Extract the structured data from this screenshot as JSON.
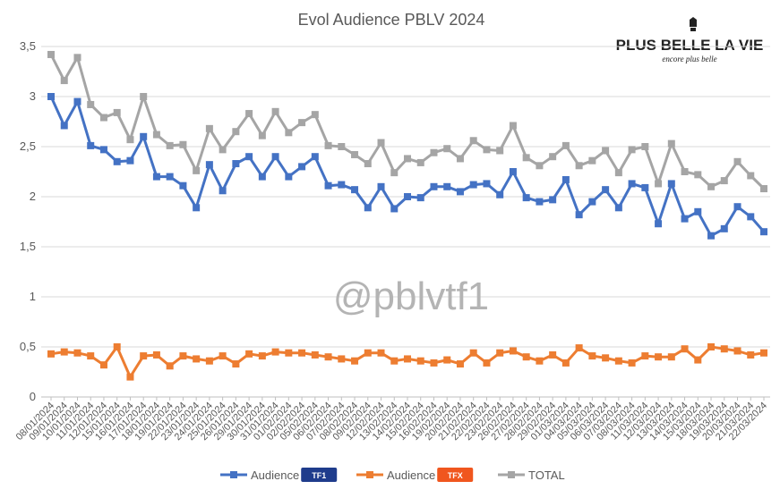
{
  "chart_data": {
    "type": "line",
    "title": "Evol Audience PBLV 2024",
    "ylim": [
      0,
      3.5
    ],
    "yticks": [
      "0",
      "0,5",
      "1",
      "1,5",
      "2",
      "2,5",
      "3",
      "3,5"
    ],
    "grid": true,
    "legend_position": "bottom",
    "x_tick_labels": [
      "08/01/2024",
      "09/01/2024",
      "10/01/2024",
      "11/01/2024",
      "12/01/2024",
      "15/01/2024",
      "16/01/2024",
      "17/01/2024",
      "18/01/2024",
      "19/01/2024",
      "22/01/2024",
      "23/01/2024",
      "24/01/2024",
      "25/01/2024",
      "26/01/2024",
      "29/01/2024",
      "30/01/2024",
      "31/01/2024",
      "01/02/2024",
      "02/02/2024",
      "05/02/2024",
      "06/02/2024",
      "07/02/2024",
      "08/02/2024",
      "09/02/2024",
      "12/02/2024",
      "13/02/2024",
      "14/02/2024",
      "15/02/2024",
      "16/02/2024",
      "19/02/2024",
      "20/02/2024",
      "21/02/2024",
      "22/02/2024",
      "23/02/2024",
      "26/02/2024",
      "27/02/2024",
      "28/02/2024",
      "29/02/2024",
      "01/03/2024",
      "04/03/2024",
      "05/03/2024",
      "06/03/2024",
      "07/03/2024",
      "08/03/2024",
      "11/03/2024",
      "12/03/2024",
      "13/03/2024",
      "14/03/2024",
      "15/03/2024",
      "18/03/2024",
      "19/03/2024",
      "20/03/2024",
      "21/03/2024",
      "22/03/2024"
    ],
    "series": [
      {
        "name": "Audience",
        "badge": "TF1",
        "color": "#4472C4",
        "values": [
          3.0,
          2.71,
          2.95,
          2.51,
          2.47,
          2.35,
          2.36,
          2.6,
          2.2,
          2.2,
          2.11,
          1.89,
          2.32,
          2.06,
          2.33,
          2.4,
          2.2,
          2.4,
          2.2,
          2.3,
          2.4,
          2.11,
          2.12,
          2.07,
          1.89,
          2.1,
          1.88,
          2.0,
          1.99,
          2.1,
          2.1,
          2.05,
          2.12,
          2.13,
          2.02,
          2.25,
          1.99,
          1.95,
          1.97,
          2.17,
          1.82,
          1.95,
          2.07,
          1.89,
          2.13,
          2.09,
          1.73,
          2.13,
          1.78,
          1.85,
          1.61,
          1.68,
          1.9,
          1.8,
          1.65
        ]
      },
      {
        "name": "Audience",
        "badge": "TFX",
        "color": "#ED7D31",
        "values": [
          0.43,
          0.45,
          0.44,
          0.41,
          0.32,
          0.5,
          0.2,
          0.41,
          0.42,
          0.31,
          0.41,
          0.38,
          0.36,
          0.41,
          0.33,
          0.43,
          0.41,
          0.45,
          0.44,
          0.44,
          0.42,
          0.4,
          0.38,
          0.36,
          0.44,
          0.44,
          0.36,
          0.38,
          0.36,
          0.34,
          0.37,
          0.33,
          0.44,
          0.34,
          0.44,
          0.46,
          0.4,
          0.36,
          0.42,
          0.34,
          0.49,
          0.41,
          0.39,
          0.36,
          0.34,
          0.41,
          0.4,
          0.4,
          0.48,
          0.37,
          0.5,
          0.48,
          0.46,
          0.42,
          0.44
        ]
      },
      {
        "name": "TOTAL",
        "color": "#A5A5A5",
        "values": [
          3.42,
          3.16,
          3.39,
          2.92,
          2.79,
          2.84,
          2.57,
          3.0,
          2.62,
          2.51,
          2.52,
          2.26,
          2.68,
          2.47,
          2.65,
          2.83,
          2.61,
          2.85,
          2.64,
          2.74,
          2.82,
          2.51,
          2.5,
          2.42,
          2.33,
          2.54,
          2.24,
          2.38,
          2.34,
          2.44,
          2.48,
          2.38,
          2.56,
          2.47,
          2.46,
          2.71,
          2.39,
          2.31,
          2.4,
          2.51,
          2.31,
          2.36,
          2.46,
          2.24,
          2.47,
          2.5,
          2.13,
          2.53,
          2.25,
          2.22,
          2.1,
          2.16,
          2.35,
          2.21,
          2.08
        ]
      }
    ]
  },
  "watermark": "@pblvtf1",
  "logo": {
    "main": "PLUS BELLE LA VIE",
    "sub": "encore plus belle"
  },
  "legend": [
    {
      "label": "Audience",
      "badge": "TF1",
      "color": "#4472C4",
      "badge_color": "#1f3c8c"
    },
    {
      "label": "Audience",
      "badge": "TFX",
      "color": "#ED7D31",
      "badge_color": "#f0561e"
    },
    {
      "label": "TOTAL",
      "color": "#A5A5A5"
    }
  ]
}
